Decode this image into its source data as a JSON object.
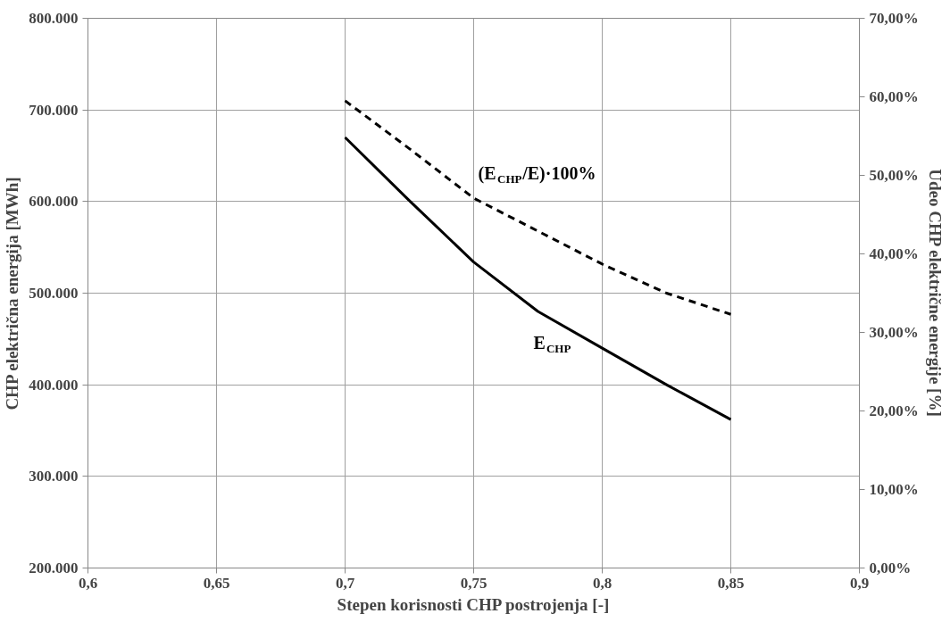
{
  "chart_data": {
    "type": "line",
    "xlabel": "Stepen korisnosti CHP postrojenja [-]",
    "ylabel": "CHP električna energija [MWh]",
    "y2label": "Udeo CHP električne energije [%]",
    "x": [
      0.7,
      0.725,
      0.75,
      0.775,
      0.8,
      0.825,
      0.85
    ],
    "series": [
      {
        "name": "E$_{CHP}$",
        "color": "#000000",
        "line_style": "solid",
        "values": [
          670000,
          601000,
          534000,
          480000,
          440000,
          400000,
          362000
        ]
      },
      {
        "name": "(E$_{CHP}$/E)·100%",
        "color": "#000000",
        "line_style": "dashed",
        "axis": "y2",
        "values": [
          59.5,
          53.4,
          47.1,
          42.9,
          38.7,
          35.0,
          32.3
        ]
      }
    ],
    "xlim": [
      0.6,
      0.9
    ],
    "xticks": [
      {
        "value": 0.6,
        "label": "0,6"
      },
      {
        "value": 0.65,
        "label": "0,65"
      },
      {
        "value": 0.7,
        "label": "0,7"
      },
      {
        "value": 0.75,
        "label": "0,75"
      },
      {
        "value": 0.8,
        "label": "0,8"
      },
      {
        "value": 0.85,
        "label": "0,85"
      },
      {
        "value": 0.9,
        "label": "0,9"
      }
    ],
    "ylim": [
      200000,
      800000
    ],
    "yticks": [
      {
        "value": 200000,
        "label": "200.000"
      },
      {
        "value": 300000,
        "label": "300.000"
      },
      {
        "value": 400000,
        "label": "400.000"
      },
      {
        "value": 500000,
        "label": "500.000"
      },
      {
        "value": 600000,
        "label": "600.000"
      },
      {
        "value": 700000,
        "label": "700.000"
      },
      {
        "value": 800000,
        "label": "800.000"
      }
    ],
    "y2lim": [
      0,
      70
    ],
    "y2ticks": [
      {
        "value": 0,
        "label": "0,00%"
      },
      {
        "value": 10,
        "label": "10,00%"
      },
      {
        "value": 20,
        "label": "20,00%"
      },
      {
        "value": 30,
        "label": "30,00%"
      },
      {
        "value": 40,
        "label": "40,00%"
      },
      {
        "value": 50,
        "label": "50,00%"
      },
      {
        "value": 60,
        "label": "60,00%"
      },
      {
        "value": 70,
        "label": "70,00%"
      }
    ],
    "grid": true
  }
}
